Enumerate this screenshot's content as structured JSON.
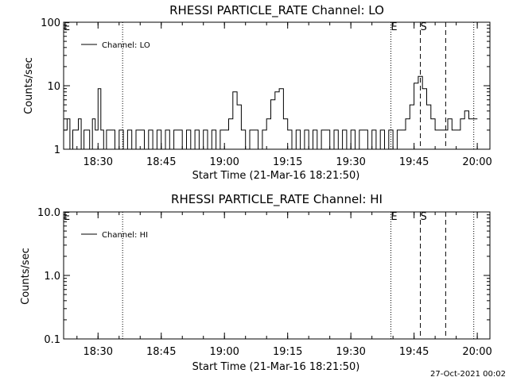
{
  "chart_data": [
    {
      "type": "line",
      "title": "RHESSI PARTICLE_RATE Channel: LO",
      "xlabel": "Start Time (21-Mar-16 18:21:50)",
      "ylabel": "Counts/sec",
      "yscale": "log",
      "ylim": [
        1,
        100
      ],
      "xlim": [
        "18:21:50",
        "20:03:00"
      ],
      "x_ticks": [
        "18:30",
        "18:45",
        "19:00",
        "19:15",
        "19:30",
        "19:45",
        "20:00"
      ],
      "y_ticks": [
        "1",
        "10",
        "100"
      ],
      "legend": {
        "position": "top-left",
        "entries": [
          "Channel: LO"
        ]
      },
      "markers": [
        {
          "label": "E",
          "time": "18:21:50",
          "style": "none"
        },
        {
          "label": "",
          "time": "18:35:50",
          "style": "dotted"
        },
        {
          "label": "E",
          "time": "19:39:30",
          "style": "dotted"
        },
        {
          "label": "S",
          "time": "19:46:30",
          "style": "dashed"
        },
        {
          "label": "",
          "time": "19:52:30",
          "style": "dashed"
        },
        {
          "label": "",
          "time": "19:59:10",
          "style": "dotted"
        }
      ],
      "series": [
        {
          "name": "Channel: LO",
          "x": [
            "18:22:00",
            "18:22:40",
            "18:23:20",
            "18:24:00",
            "18:24:40",
            "18:25:20",
            "18:26:00",
            "18:26:40",
            "18:27:20",
            "18:28:00",
            "18:28:40",
            "18:29:20",
            "18:30:00",
            "18:30:40",
            "18:31:20",
            "18:32:00",
            "18:33:00",
            "18:34:00",
            "18:35:00",
            "18:36:00",
            "18:37:00",
            "18:38:00",
            "18:39:00",
            "18:40:00",
            "18:41:00",
            "18:42:00",
            "18:43:00",
            "18:44:00",
            "18:45:00",
            "18:46:00",
            "18:47:00",
            "18:48:00",
            "18:49:00",
            "18:50:00",
            "18:51:00",
            "18:52:00",
            "18:53:00",
            "18:54:00",
            "18:55:00",
            "18:56:00",
            "18:57:00",
            "18:58:00",
            "18:59:00",
            "19:00:00",
            "19:01:00",
            "19:02:00",
            "19:03:00",
            "19:04:00",
            "19:05:00",
            "19:06:00",
            "19:07:00",
            "19:08:00",
            "19:09:00",
            "19:10:00",
            "19:11:00",
            "19:12:00",
            "19:13:00",
            "19:14:00",
            "19:15:00",
            "19:16:00",
            "19:17:00",
            "19:18:00",
            "19:19:00",
            "19:20:00",
            "19:21:00",
            "19:22:00",
            "19:23:00",
            "19:24:00",
            "19:25:00",
            "19:26:00",
            "19:27:00",
            "19:28:00",
            "19:29:00",
            "19:30:00",
            "19:31:00",
            "19:32:00",
            "19:33:00",
            "19:34:00",
            "19:35:00",
            "19:36:00",
            "19:37:00",
            "19:38:00",
            "19:39:00",
            "19:40:00",
            "19:41:00",
            "19:42:00",
            "19:43:00",
            "19:44:00",
            "19:45:00",
            "19:46:00",
            "19:47:00",
            "19:48:00",
            "19:49:00",
            "19:50:00",
            "19:51:00",
            "19:52:00",
            "19:53:00",
            "19:54:00",
            "19:55:00",
            "19:56:00",
            "19:57:00",
            "19:58:00",
            "19:59:00",
            "19:59:40"
          ],
          "values": [
            2,
            3,
            1,
            2,
            2,
            3,
            1,
            2,
            2,
            1,
            3,
            2,
            9,
            2,
            1,
            2,
            2,
            1,
            2,
            1,
            2,
            1,
            2,
            2,
            1,
            2,
            1,
            2,
            1,
            2,
            1,
            2,
            2,
            1,
            2,
            1,
            2,
            1,
            2,
            1,
            2,
            1,
            2,
            2,
            3,
            8,
            5,
            2,
            1,
            2,
            2,
            1,
            2,
            3,
            6,
            8,
            9,
            3,
            2,
            1,
            2,
            1,
            2,
            1,
            2,
            1,
            2,
            2,
            1,
            2,
            1,
            2,
            1,
            2,
            1,
            2,
            2,
            1,
            2,
            1,
            2,
            1,
            2,
            1,
            2,
            2,
            3,
            5,
            11,
            14,
            9,
            5,
            3,
            2,
            2,
            2,
            3,
            2,
            2,
            3,
            4,
            3,
            3,
            3
          ]
        }
      ]
    },
    {
      "type": "line",
      "title": "RHESSI PARTICLE_RATE Channel: HI",
      "xlabel": "Start Time (21-Mar-16 18:21:50)",
      "ylabel": "Counts/sec",
      "yscale": "log",
      "ylim": [
        0.1,
        10.0
      ],
      "xlim": [
        "18:21:50",
        "20:03:00"
      ],
      "x_ticks": [
        "18:30",
        "18:45",
        "19:00",
        "19:15",
        "19:30",
        "19:45",
        "20:00"
      ],
      "y_ticks": [
        "0.1",
        "1.0",
        "10.0"
      ],
      "legend": {
        "position": "top-left",
        "entries": [
          "Channel: HI"
        ]
      },
      "markers": [
        {
          "label": "E",
          "time": "18:21:50",
          "style": "none"
        },
        {
          "label": "",
          "time": "18:35:50",
          "style": "dotted"
        },
        {
          "label": "E",
          "time": "19:39:30",
          "style": "dotted"
        },
        {
          "label": "S",
          "time": "19:46:30",
          "style": "dashed"
        },
        {
          "label": "",
          "time": "19:52:30",
          "style": "dashed"
        },
        {
          "label": "",
          "time": "19:59:10",
          "style": "dotted"
        }
      ],
      "series": [
        {
          "name": "Channel: HI",
          "x": [],
          "values": []
        }
      ]
    }
  ],
  "footer": {
    "timestamp": "27-Oct-2021 00:02"
  }
}
